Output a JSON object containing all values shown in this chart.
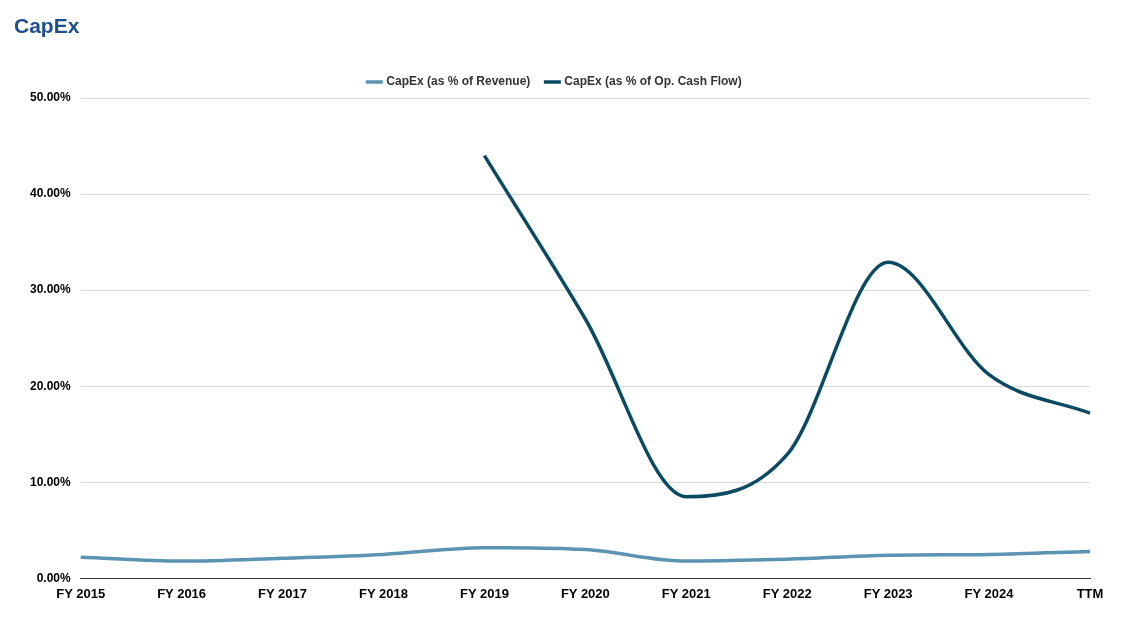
{
  "chart_data": {
    "type": "line",
    "title": "CapEx",
    "categories": [
      "FY 2015",
      "FY 2016",
      "FY 2017",
      "FY 2018",
      "FY 2019",
      "FY 2020",
      "FY 2021",
      "FY 2022",
      "FY 2023",
      "FY 2024",
      "TTM"
    ],
    "series": [
      {
        "name": "CapEx (as % of Revenue)",
        "color": "#5b93b3",
        "values": [
          2.2,
          1.8,
          2.1,
          2.5,
          3.2,
          3.0,
          1.8,
          2.0,
          2.4,
          2.5,
          2.8
        ]
      },
      {
        "name": "CapEx (as % of Op. Cash Flow)",
        "color": "#0b4a63",
        "values": [
          null,
          null,
          null,
          null,
          44.0,
          27.0,
          8.5,
          12.9,
          32.9,
          21.2,
          17.2
        ]
      }
    ],
    "ylim": [
      0,
      50
    ],
    "yticks": [
      {
        "value": 0,
        "label": "0.00%"
      },
      {
        "value": 10,
        "label": "10.00%"
      },
      {
        "value": 20,
        "label": "20.00%"
      },
      {
        "value": 30,
        "label": "30.00%"
      },
      {
        "value": 40,
        "label": "40.00%"
      },
      {
        "value": 50,
        "label": "50.00%"
      }
    ],
    "grid": "y",
    "legend": "top",
    "marker": "none",
    "line_style": "solid"
  }
}
